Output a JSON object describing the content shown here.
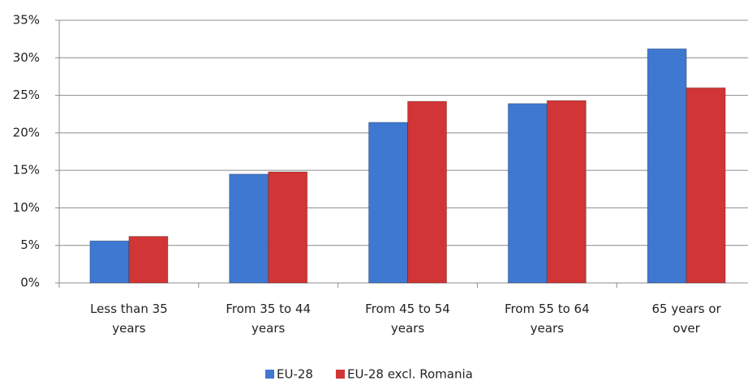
{
  "chart_data": {
    "type": "bar",
    "categories": [
      "Less than 35 years",
      "From 35 to 44 years",
      "From 45 to 54 years",
      "From 55 to 64 years",
      "65 years or over"
    ],
    "series": [
      {
        "name": "EU-28",
        "color": "#3f78d0",
        "values": [
          5.6,
          14.5,
          21.4,
          23.9,
          31.2
        ]
      },
      {
        "name": "EU-28 excl. Romania",
        "color": "#d23535",
        "values": [
          6.2,
          14.8,
          24.2,
          24.3,
          26.0
        ]
      }
    ],
    "ylim": [
      0,
      35
    ],
    "yticks": [
      {
        "value": 0,
        "label": "0%"
      },
      {
        "value": 5,
        "label": "5%"
      },
      {
        "value": 10,
        "label": "10%"
      },
      {
        "value": 15,
        "label": "15%"
      },
      {
        "value": 20,
        "label": "20%"
      },
      {
        "value": 25,
        "label": "25%"
      },
      {
        "value": 30,
        "label": "30%"
      },
      {
        "value": 35,
        "label": "35%"
      }
    ],
    "grid": true,
    "legend": "bottom"
  }
}
